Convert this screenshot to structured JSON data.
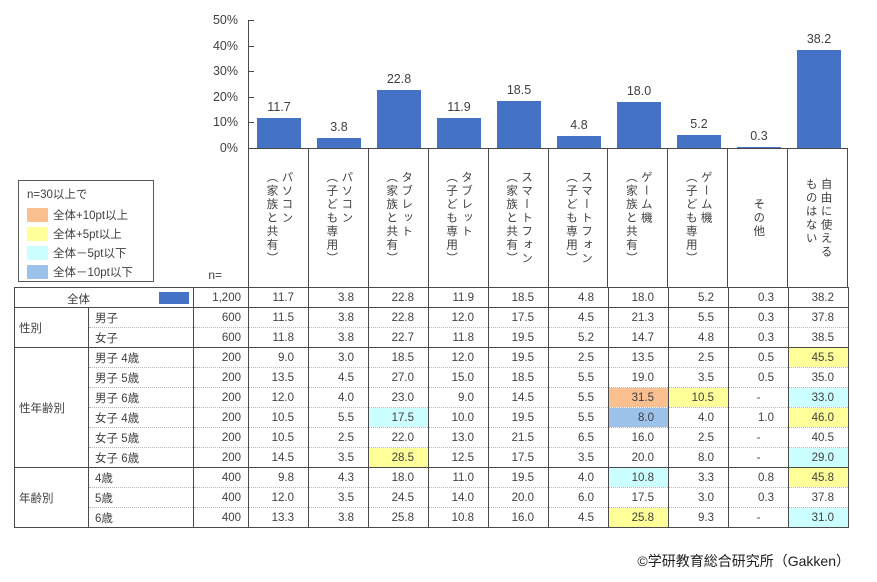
{
  "chart_data": {
    "type": "bar",
    "title": "",
    "xlabel": "",
    "ylabel": "",
    "ylim": [
      0,
      50
    ],
    "y_ticks": [
      "50%",
      "40%",
      "30%",
      "20%",
      "10%",
      "0%"
    ],
    "grid": false,
    "legend_position": "none",
    "bar_color": "#4472C4",
    "categories": [
      "パソコン\n（家族と共有）",
      "パソコン\n（子ども専用）",
      "タブレット\n（家族と共有）",
      "タブレット\n（子ども専用）",
      "スマートフォン\n（家族と共有）",
      "スマートフォン\n（子ども専用）",
      "ゲーム機\n（家族と共有）",
      "ゲーム機\n（子ども専用）",
      "その他",
      "自由に使える\nものはない"
    ],
    "values": [
      11.7,
      3.8,
      22.8,
      11.9,
      18.5,
      4.8,
      18.0,
      5.2,
      0.3,
      38.2
    ]
  },
  "legend": {
    "title": "n=30以上で",
    "items": [
      {
        "code": "o",
        "label": "全体+10pt以上",
        "color": "#FABF8F"
      },
      {
        "code": "y",
        "label": "全体+5pt以上",
        "color": "#FFFF99"
      },
      {
        "code": "c",
        "label": "全体－5pt以下",
        "color": "#CCFFFF"
      },
      {
        "code": "b",
        "label": "全体－10pt以下",
        "color": "#9CC2EA"
      }
    ]
  },
  "mark_colors": {
    "o": "#FABF8F",
    "y": "#FFFF99",
    "c": "#CCFFFF",
    "b": "#9CC2EA"
  },
  "table": {
    "n_header": "n=",
    "groups": [
      {
        "label": "",
        "rows": [
          {
            "label": "全体",
            "swatch": true,
            "n": "1,200",
            "values": [
              "11.7",
              "3.8",
              "22.8",
              "11.9",
              "18.5",
              "4.8",
              "18.0",
              "5.2",
              "0.3",
              "38.2"
            ]
          }
        ]
      },
      {
        "label": "性別",
        "rows": [
          {
            "label": "男子",
            "n": "600",
            "values": [
              "11.5",
              "3.8",
              "22.8",
              "12.0",
              "17.5",
              "4.5",
              "21.3",
              "5.5",
              "0.3",
              "37.8"
            ]
          },
          {
            "label": "女子",
            "n": "600",
            "values": [
              "11.8",
              "3.8",
              "22.7",
              "11.8",
              "19.5",
              "5.2",
              "14.7",
              "4.8",
              "0.3",
              "38.5"
            ]
          }
        ]
      },
      {
        "label": "性年齢別",
        "rows": [
          {
            "label": "男子 4歳",
            "n": "200",
            "values": [
              "9.0",
              "3.0",
              "18.5",
              "12.0",
              "19.5",
              "2.5",
              "13.5",
              "2.5",
              "0.5",
              "45.5"
            ],
            "marks": [
              "",
              "",
              "",
              "",
              "",
              "",
              "",
              "",
              "",
              "y"
            ]
          },
          {
            "label": "男子 5歳",
            "n": "200",
            "values": [
              "13.5",
              "4.5",
              "27.0",
              "15.0",
              "18.5",
              "5.5",
              "19.0",
              "3.5",
              "0.5",
              "35.0"
            ]
          },
          {
            "label": "男子 6歳",
            "n": "200",
            "values": [
              "12.0",
              "4.0",
              "23.0",
              "9.0",
              "14.5",
              "5.5",
              "31.5",
              "10.5",
              "-",
              "33.0"
            ],
            "marks": [
              "",
              "",
              "",
              "",
              "",
              "",
              "o",
              "y",
              "",
              "c"
            ]
          },
          {
            "label": "女子 4歳",
            "n": "200",
            "values": [
              "10.5",
              "5.5",
              "17.5",
              "10.0",
              "19.5",
              "5.5",
              "8.0",
              "4.0",
              "1.0",
              "46.0"
            ],
            "marks": [
              "",
              "",
              "c",
              "",
              "",
              "",
              "b",
              "",
              "",
              "y"
            ]
          },
          {
            "label": "女子 5歳",
            "n": "200",
            "values": [
              "10.5",
              "2.5",
              "22.0",
              "13.0",
              "21.5",
              "6.5",
              "16.0",
              "2.5",
              "-",
              "40.5"
            ]
          },
          {
            "label": "女子 6歳",
            "n": "200",
            "values": [
              "14.5",
              "3.5",
              "28.5",
              "12.5",
              "17.5",
              "3.5",
              "20.0",
              "8.0",
              "-",
              "29.0"
            ],
            "marks": [
              "",
              "",
              "y",
              "",
              "",
              "",
              "",
              "",
              "",
              "c"
            ]
          }
        ]
      },
      {
        "label": "年齢別",
        "rows": [
          {
            "label": "4歳",
            "n": "400",
            "values": [
              "9.8",
              "4.3",
              "18.0",
              "11.0",
              "19.5",
              "4.0",
              "10.8",
              "3.3",
              "0.8",
              "45.8"
            ],
            "marks": [
              "",
              "",
              "",
              "",
              "",
              "",
              "c",
              "",
              "",
              "y"
            ]
          },
          {
            "label": "5歳",
            "n": "400",
            "values": [
              "12.0",
              "3.5",
              "24.5",
              "14.0",
              "20.0",
              "6.0",
              "17.5",
              "3.0",
              "0.3",
              "37.8"
            ]
          },
          {
            "label": "6歳",
            "n": "400",
            "values": [
              "13.3",
              "3.8",
              "25.8",
              "10.8",
              "16.0",
              "4.5",
              "25.8",
              "9.3",
              "-",
              "31.0"
            ],
            "marks": [
              "",
              "",
              "",
              "",
              "",
              "",
              "y",
              "",
              "",
              "c"
            ]
          }
        ]
      }
    ]
  },
  "footer": {
    "credit": "©学研教育総合研究所（Gakken）"
  }
}
